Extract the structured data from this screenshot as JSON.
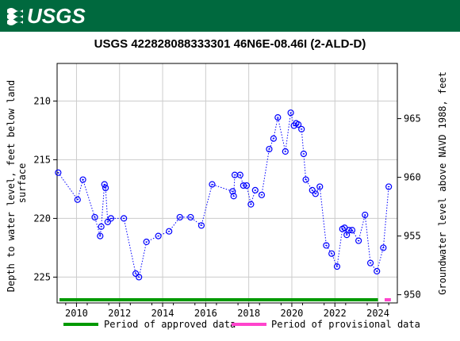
{
  "banner": {
    "logo_text": "USGS",
    "color": "#00693e"
  },
  "chart_data": {
    "type": "scatter",
    "title": "USGS 422828088333301 46N6E-08.46I (2-ALD-D)",
    "ylabel_left": "Depth to water level, feet below land surface",
    "ylabel_right": "Groundwater level above NAVD 1988, feet",
    "xlim": [
      2009.1,
      2024.9
    ],
    "ylim_left": [
      227.2,
      206.8
    ],
    "ylim_right": [
      949.3,
      969.7
    ],
    "left_ticks": [
      210,
      215,
      220,
      225
    ],
    "right_ticks": [
      950,
      955,
      960,
      965
    ],
    "x_ticks": [
      2010,
      2012,
      2014,
      2016,
      2018,
      2020,
      2022,
      2024
    ],
    "grid": true,
    "line_style": "dotted",
    "series": [
      {
        "name": "",
        "color": "#0000ff",
        "points": [
          [
            2009.15,
            216.1
          ],
          [
            2010.05,
            218.4
          ],
          [
            2010.3,
            216.7
          ],
          [
            2010.85,
            219.9
          ],
          [
            2011.1,
            221.5
          ],
          [
            2011.15,
            220.7
          ],
          [
            2011.3,
            217.1
          ],
          [
            2011.35,
            217.4
          ],
          [
            2011.45,
            220.3
          ],
          [
            2011.6,
            220.0
          ],
          [
            2012.2,
            220.0
          ],
          [
            2012.75,
            224.7
          ],
          [
            2012.9,
            225.0
          ],
          [
            2013.25,
            222.0
          ],
          [
            2013.8,
            221.5
          ],
          [
            2014.3,
            221.1
          ],
          [
            2014.8,
            219.9
          ],
          [
            2015.3,
            219.9
          ],
          [
            2015.8,
            220.6
          ],
          [
            2016.3,
            217.1
          ],
          [
            2017.25,
            217.7
          ],
          [
            2017.3,
            218.1
          ],
          [
            2017.35,
            216.3
          ],
          [
            2017.6,
            216.3
          ],
          [
            2017.75,
            217.2
          ],
          [
            2017.9,
            217.2
          ],
          [
            2018.1,
            218.8
          ],
          [
            2018.3,
            217.6
          ],
          [
            2018.6,
            218.0
          ],
          [
            2018.95,
            214.1
          ],
          [
            2019.15,
            213.2
          ],
          [
            2019.35,
            211.4
          ],
          [
            2019.7,
            214.3
          ],
          [
            2019.95,
            211.0
          ],
          [
            2020.1,
            212.1
          ],
          [
            2020.2,
            211.9
          ],
          [
            2020.3,
            212.0
          ],
          [
            2020.45,
            212.4
          ],
          [
            2020.55,
            214.5
          ],
          [
            2020.65,
            216.7
          ],
          [
            2020.95,
            217.6
          ],
          [
            2021.1,
            217.9
          ],
          [
            2021.3,
            217.3
          ],
          [
            2021.6,
            222.3
          ],
          [
            2021.85,
            223.0
          ],
          [
            2022.1,
            224.1
          ],
          [
            2022.35,
            220.9
          ],
          [
            2022.45,
            220.8
          ],
          [
            2022.55,
            221.4
          ],
          [
            2022.65,
            221.0
          ],
          [
            2022.8,
            221.0
          ],
          [
            2023.1,
            221.9
          ],
          [
            2023.4,
            219.7
          ],
          [
            2023.65,
            223.8
          ],
          [
            2023.95,
            224.5
          ],
          [
            2024.25,
            222.5
          ],
          [
            2024.5,
            217.3
          ]
        ]
      }
    ],
    "periods": [
      {
        "name": "Period of approved data",
        "color": "#009900",
        "start": 2009.1,
        "end": 2024.0
      },
      {
        "name": "Period of provisional data",
        "color": "#ff44cc",
        "start": 2024.2,
        "end": 2024.6
      }
    ],
    "legend_position": "bottom"
  }
}
